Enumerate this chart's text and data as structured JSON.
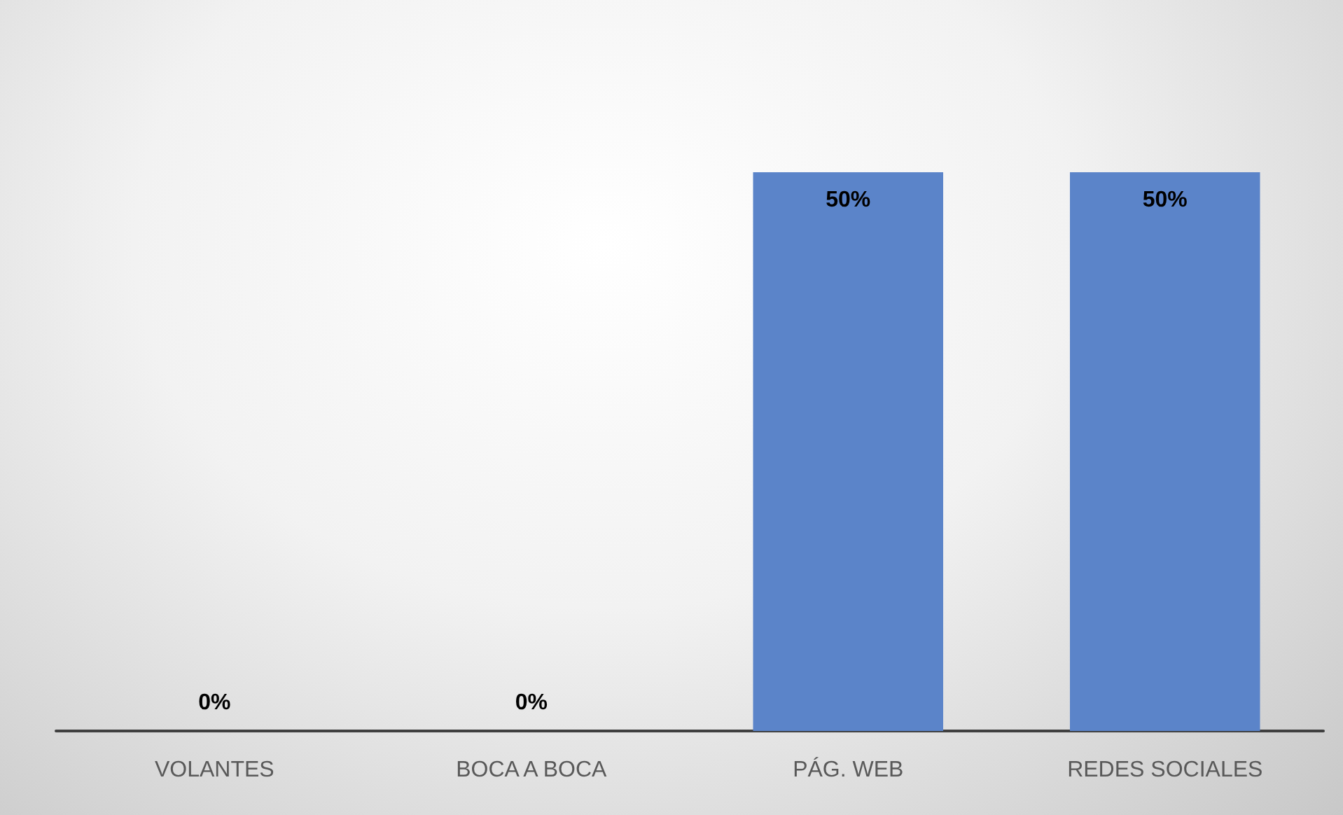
{
  "chart_data": {
    "type": "bar",
    "categories": [
      "VOLANTES",
      "BOCA A BOCA",
      "PÁG. WEB",
      "REDES SOCIALES"
    ],
    "values": [
      0,
      0,
      50,
      50
    ],
    "color": "#5b84c9",
    "value_labels": [
      "0%",
      "0%",
      "50%",
      "50%"
    ]
  }
}
